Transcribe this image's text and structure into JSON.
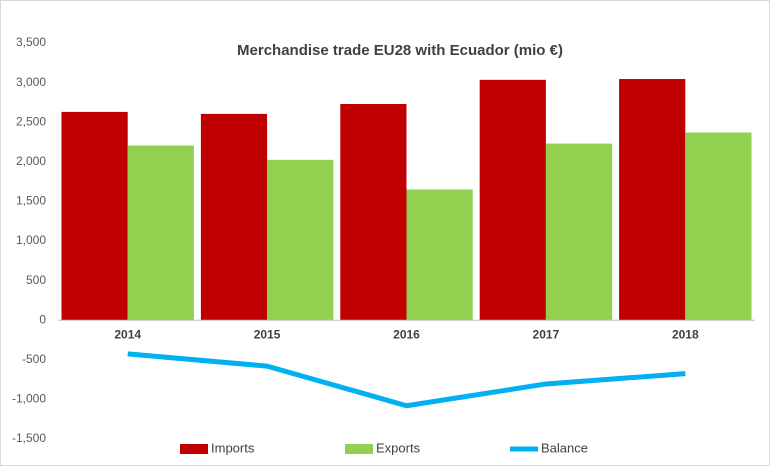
{
  "chart_data": {
    "type": "bar_line",
    "title": "Merchandise trade EU28 with Ecuador (mio €)",
    "categories": [
      "2014",
      "2015",
      "2016",
      "2017",
      "2018"
    ],
    "series": [
      {
        "name": "Imports",
        "color": "#c00000",
        "type": "bar",
        "values": [
          2630,
          2605,
          2730,
          3035,
          3045
        ]
      },
      {
        "name": "Exports",
        "color": "#92d050",
        "type": "bar",
        "values": [
          2205,
          2025,
          1650,
          2230,
          2370
        ]
      },
      {
        "name": "Balance",
        "color": "#00b0f0",
        "type": "line",
        "values": [
          -425,
          -580,
          -1080,
          -805,
          -675
        ]
      }
    ],
    "ylim": [
      -1500,
      3500
    ],
    "yticks": [
      {
        "value": -1500,
        "label": "-1,500"
      },
      {
        "value": -1000,
        "label": "-1,000"
      },
      -500,
      0,
      500,
      {
        "value": 1000,
        "label": "1,000"
      },
      {
        "value": 1500,
        "label": "1,500"
      },
      {
        "value": 2000,
        "label": "2,000"
      },
      {
        "value": 2500,
        "label": "2,500"
      },
      {
        "value": 3000,
        "label": "3,000"
      },
      {
        "value": 3500,
        "label": "3,500"
      }
    ],
    "grid": false,
    "legend": "bottom"
  }
}
